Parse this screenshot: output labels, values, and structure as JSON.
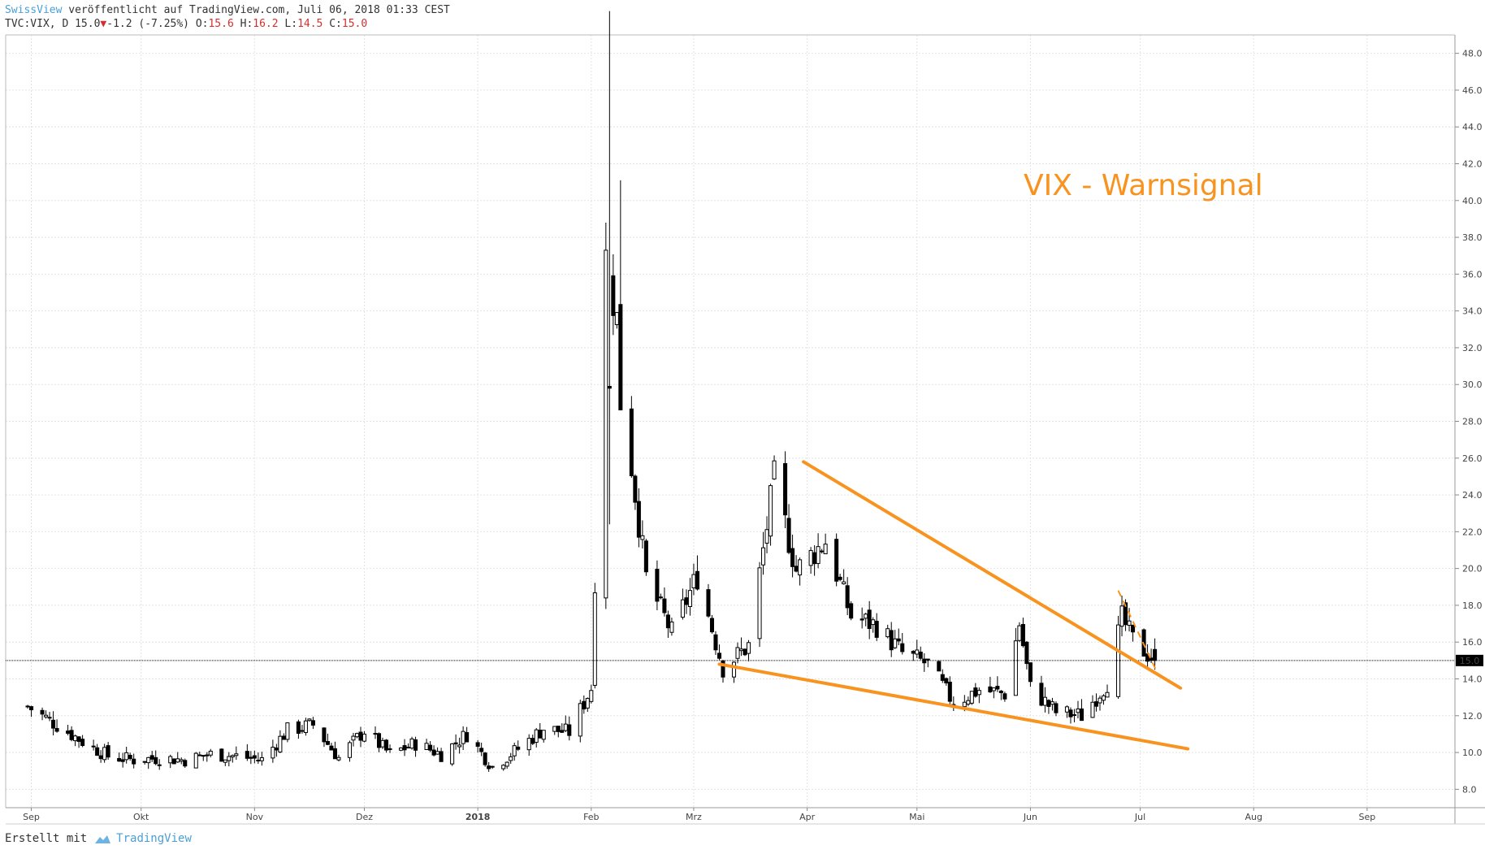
{
  "header": {
    "author": "SwissView",
    "published_text": "veröffentlicht auf TradingView.com, Juli 06, 2018 01:33 CEST",
    "symbol": "TVC:VIX, D",
    "last": "15.0",
    "down_arrow": "▼",
    "change": "-1.2 (-7.25%)",
    "open_label": "O:",
    "open": "15.6",
    "high_label": "H:",
    "high": "16.2",
    "low_label": "L:",
    "low": "14.5",
    "close_label": "C:",
    "close": "15.0"
  },
  "footer": {
    "created_with": "Erstellt mit",
    "brand": "TradingView"
  },
  "colors": {
    "candle": "#000000",
    "trendline": "#f7931e",
    "grid": "#e4e4e4",
    "price_label_bg": "#000000"
  },
  "chart_data": {
    "type": "candlestick",
    "title": "VIX - Warnsignal",
    "ylim": [
      7,
      49
    ],
    "y_ticks": [
      "48.0",
      "46.0",
      "44.0",
      "42.0",
      "40.0",
      "38.0",
      "36.0",
      "34.0",
      "32.0",
      "30.0",
      "28.0",
      "26.0",
      "24.0",
      "22.0",
      "20.0",
      "18.0",
      "16.0",
      "14.0",
      "12.0",
      "10.0",
      "8.0"
    ],
    "x_tick_labels": [
      "Sep",
      "Okt",
      "Nov",
      "Dez",
      "2018",
      "Feb",
      "Mrz",
      "Apr",
      "Mai",
      "Jun",
      "Jul",
      "Aug",
      "Sep"
    ],
    "x_tick_dates": [
      "2017-09-01",
      "2017-10-01",
      "2017-11-01",
      "2017-12-01",
      "2018-01-01",
      "2018-02-01",
      "2018-03-01",
      "2018-04-01",
      "2018-05-01",
      "2018-06-01",
      "2018-07-01",
      "2018-08-01",
      "2018-09-01"
    ],
    "current_price_label": "15.0",
    "current_price": 15.0,
    "anchors": [
      {
        "date": "2017-08-31",
        "close": 12.5
      },
      {
        "date": "2017-09-08",
        "close": 11.5
      },
      {
        "date": "2017-09-15",
        "close": 10.6
      },
      {
        "date": "2017-09-22",
        "close": 9.8
      },
      {
        "date": "2017-09-29",
        "close": 9.6
      },
      {
        "date": "2017-10-06",
        "close": 9.7
      },
      {
        "date": "2017-10-13",
        "close": 9.6
      },
      {
        "date": "2017-10-20",
        "close": 9.9
      },
      {
        "date": "2017-10-27",
        "close": 9.8
      },
      {
        "date": "2017-11-03",
        "close": 9.6
      },
      {
        "date": "2017-11-10",
        "close": 11.2
      },
      {
        "date": "2017-11-17",
        "close": 11.5
      },
      {
        "date": "2017-11-24",
        "close": 9.7
      },
      {
        "date": "2017-12-01",
        "close": 11.2
      },
      {
        "date": "2017-12-08",
        "close": 9.9
      },
      {
        "date": "2017-12-15",
        "close": 10.5
      },
      {
        "date": "2017-12-22",
        "close": 9.9
      },
      {
        "date": "2017-12-29",
        "close": 11.0
      },
      {
        "date": "2018-01-05",
        "close": 9.2
      },
      {
        "date": "2018-01-12",
        "close": 10.2
      },
      {
        "date": "2018-01-19",
        "close": 11.3
      },
      {
        "date": "2018-01-26",
        "close": 11.1
      },
      {
        "date": "2018-02-01",
        "close": 13.5
      },
      {
        "date": "2018-02-05",
        "close": 37.3
      },
      {
        "date": "2018-02-08",
        "close": 33.5
      },
      {
        "date": "2018-02-09",
        "close": 29.1
      },
      {
        "date": "2018-02-12",
        "close": 25.6
      },
      {
        "date": "2018-02-16",
        "close": 19.5
      },
      {
        "date": "2018-02-23",
        "close": 16.5
      },
      {
        "date": "2018-03-02",
        "close": 19.6
      },
      {
        "date": "2018-03-09",
        "close": 14.6
      },
      {
        "date": "2018-03-16",
        "close": 15.8
      },
      {
        "date": "2018-03-23",
        "close": 24.9
      },
      {
        "date": "2018-03-29",
        "close": 19.9
      },
      {
        "date": "2018-04-06",
        "close": 21.5
      },
      {
        "date": "2018-04-13",
        "close": 17.4
      },
      {
        "date": "2018-04-20",
        "close": 16.9
      },
      {
        "date": "2018-04-27",
        "close": 15.4
      },
      {
        "date": "2018-05-04",
        "close": 14.8
      },
      {
        "date": "2018-05-11",
        "close": 12.7
      },
      {
        "date": "2018-05-18",
        "close": 13.4
      },
      {
        "date": "2018-05-25",
        "close": 13.2
      },
      {
        "date": "2018-05-29",
        "close": 17.0
      },
      {
        "date": "2018-06-01",
        "close": 13.5
      },
      {
        "date": "2018-06-08",
        "close": 12.2
      },
      {
        "date": "2018-06-15",
        "close": 12.0
      },
      {
        "date": "2018-06-22",
        "close": 13.8
      },
      {
        "date": "2018-06-26",
        "close": 17.3
      },
      {
        "date": "2018-06-29",
        "close": 16.1
      },
      {
        "date": "2018-07-05",
        "close": 15.0
      }
    ],
    "annotations": {
      "upper_trendline": [
        {
          "date": "2018-03-31",
          "value": 25.8
        },
        {
          "date": "2018-07-12",
          "value": 13.5
        }
      ],
      "lower_trendline": [
        {
          "date": "2018-03-08",
          "value": 14.8
        },
        {
          "date": "2018-07-14",
          "value": 10.2
        }
      ],
      "dashed_line": [
        {
          "date": "2018-06-25",
          "value": 18.8
        },
        {
          "date": "2018-07-06",
          "value": 14.2
        }
      ]
    }
  }
}
